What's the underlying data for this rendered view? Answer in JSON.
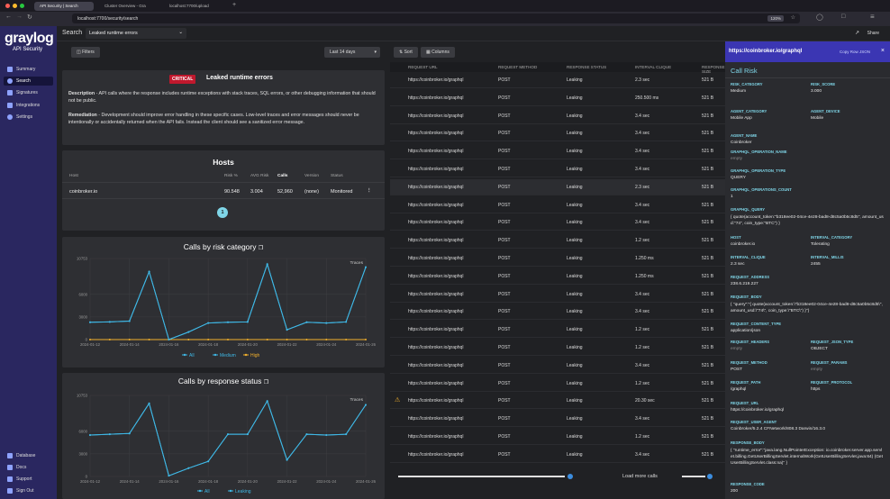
{
  "browser": {
    "tabs": [
      "API Security | Search",
      "Cluster Overview - Gra",
      "localhost:7700/upload"
    ],
    "url": "localhost:7700/security/search",
    "zoom": "120%"
  },
  "sidebar": {
    "logo": "graylog",
    "logo_sub": "API Security",
    "items": [
      {
        "label": "Summary"
      },
      {
        "label": "Search"
      },
      {
        "label": "Signatures"
      },
      {
        "label": "Integrations"
      },
      {
        "label": "Settings"
      }
    ],
    "bottom": [
      {
        "label": "Database"
      },
      {
        "label": "Docs"
      },
      {
        "label": "Support"
      },
      {
        "label": "Sign Out"
      }
    ]
  },
  "header": {
    "search_label": "Search",
    "search_value": "Leaked runtime errors",
    "share": "Share"
  },
  "filters": {
    "label": "Filters",
    "range": "Last 14 days"
  },
  "issue": {
    "badge": "CRITICAL",
    "title": "Leaked runtime errors",
    "desc_label": "Description",
    "desc": " - API calls where the response includes runtime exceptions with stack traces, SQL errors, or other debugging information that should not be public.",
    "rem_label": "Remediation",
    "rem": " - Development should improve error handling in these specific cases. Low-level traces and error messages should never be intentionally or accidentally returned when the API fails. Instead the client should see a sanitized error message."
  },
  "hosts": {
    "title": "Hosts",
    "headers": [
      "Host",
      "Risk %",
      "AVG Risk",
      "Calls",
      "Version",
      "Status"
    ],
    "row": [
      "coinbroker.io",
      "90.548",
      "3.004",
      "52,960",
      "(none)",
      "Monitored"
    ],
    "page": "1"
  },
  "chart1": {
    "title": "Calls by risk category",
    "traces": "Traces",
    "legend": [
      "All",
      "Medium",
      "High"
    ]
  },
  "chart2": {
    "title": "Calls by response status",
    "traces": "Traces",
    "legend": [
      "All",
      "Leaking"
    ]
  },
  "chart_data": [
    {
      "type": "line",
      "title": "Calls by risk category",
      "ylim": [
        0,
        10753
      ],
      "yticks": [
        "10753",
        "6000",
        "3000",
        "0"
      ],
      "xticks": [
        "2024-01-12",
        "2024-01-14",
        "2024-01-16",
        "2024-01-18",
        "2024-01-20",
        "2024-01-22",
        "2024-01-24",
        "2024-01-26"
      ],
      "series": [
        {
          "name": "All",
          "color": "#3fb8e6",
          "values": [
            2300,
            2350,
            2450,
            9000,
            0,
            1000,
            2200,
            2300,
            2350,
            10000,
            1300,
            2300,
            2200,
            2350,
            9600
          ]
        },
        {
          "name": "Medium",
          "color": "#3fb8e6",
          "values": [
            2300,
            2350,
            2450,
            9000,
            0,
            1000,
            2200,
            2300,
            2350,
            10000,
            1300,
            2300,
            2200,
            2350,
            9600
          ]
        },
        {
          "name": "High",
          "color": "#f2b02c",
          "values": [
            0,
            0,
            0,
            0,
            0,
            0,
            0,
            0,
            0,
            0,
            0,
            0,
            0,
            0,
            0
          ]
        }
      ]
    },
    {
      "type": "line",
      "title": "Calls by response status",
      "ylim": [
        0,
        10753
      ],
      "yticks": [
        "10753",
        "6000",
        "3000",
        "0"
      ],
      "xticks": [
        "2024-01-12",
        "2024-01-14",
        "2024-01-16",
        "2024-01-18",
        "2024-01-20",
        "2024-01-22",
        "2024-01-24",
        "2024-01-26"
      ],
      "series": [
        {
          "name": "All",
          "color": "#3fb8e6",
          "values": [
            5500,
            5600,
            5700,
            9700,
            100,
            1100,
            2000,
            5600,
            5600,
            10000,
            2200,
            5600,
            5500,
            5600,
            9500
          ]
        },
        {
          "name": "Leaking",
          "color": "#3fb8e6",
          "values": [
            5500,
            5600,
            5700,
            9700,
            100,
            1100,
            2000,
            5600,
            5600,
            10000,
            2200,
            5600,
            5500,
            5600,
            9500
          ]
        }
      ]
    }
  ],
  "toolbar": {
    "sort": "Sort",
    "columns": "Columns"
  },
  "table": {
    "headers": [
      "REQUEST URL",
      "REQUEST METHOD",
      "RESPONSE STATUS",
      "INTERVAL CLIQUE",
      "RESPONSE SIZE"
    ],
    "rows": [
      [
        "https://coinbroker.io/graphql",
        "POST",
        "Leaking",
        "2.3 sec",
        "521 B"
      ],
      [
        "https://coinbroker.io/graphql",
        "POST",
        "Leaking",
        "250.500 ms",
        "521 B"
      ],
      [
        "https://coinbroker.io/graphql",
        "POST",
        "Leaking",
        "3.4 sec",
        "521 B"
      ],
      [
        "https://coinbroker.io/graphql",
        "POST",
        "Leaking",
        "3.4 sec",
        "521 B"
      ],
      [
        "https://coinbroker.io/graphql",
        "POST",
        "Leaking",
        "3.4 sec",
        "521 B"
      ],
      [
        "https://coinbroker.io/graphql",
        "POST",
        "Leaking",
        "3.4 sec",
        "521 B"
      ],
      [
        "https://coinbroker.io/graphql",
        "POST",
        "Leaking",
        "2.3 sec",
        "521 B"
      ],
      [
        "https://coinbroker.io/graphql",
        "POST",
        "Leaking",
        "3.4 sec",
        "521 B"
      ],
      [
        "https://coinbroker.io/graphql",
        "POST",
        "Leaking",
        "3.4 sec",
        "521 B"
      ],
      [
        "https://coinbroker.io/graphql",
        "POST",
        "Leaking",
        "1.2 sec",
        "521 B"
      ],
      [
        "https://coinbroker.io/graphql",
        "POST",
        "Leaking",
        "1.250 ms",
        "521 B"
      ],
      [
        "https://coinbroker.io/graphql",
        "POST",
        "Leaking",
        "1.250 ms",
        "521 B"
      ],
      [
        "https://coinbroker.io/graphql",
        "POST",
        "Leaking",
        "3.4 sec",
        "521 B"
      ],
      [
        "https://coinbroker.io/graphql",
        "POST",
        "Leaking",
        "3.4 sec",
        "521 B"
      ],
      [
        "https://coinbroker.io/graphql",
        "POST",
        "Leaking",
        "1.2 sec",
        "521 B"
      ],
      [
        "https://coinbroker.io/graphql",
        "POST",
        "Leaking",
        "1.2 sec",
        "521 B"
      ],
      [
        "https://coinbroker.io/graphql",
        "POST",
        "Leaking",
        "3.4 sec",
        "521 B"
      ],
      [
        "https://coinbroker.io/graphql",
        "POST",
        "Leaking",
        "1.2 sec",
        "521 B"
      ],
      [
        "https://coinbroker.io/graphql",
        "POST",
        "Leaking",
        "20.30 sec",
        "521 B"
      ],
      [
        "https://coinbroker.io/graphql",
        "POST",
        "Leaking",
        "3.4 sec",
        "521 B"
      ],
      [
        "https://coinbroker.io/graphql",
        "POST",
        "Leaking",
        "1.2 sec",
        "521 B"
      ],
      [
        "https://coinbroker.io/graphql",
        "POST",
        "Leaking",
        "3.4 sec",
        "521 B"
      ]
    ],
    "load_more": "Load more calls"
  },
  "drawer": {
    "url": "https://coinbroker.io/graphql",
    "copy": "Copy Row JSON",
    "title": "Call Risk",
    "f": {
      "risk_category_l": "RISK_CATEGORY",
      "risk_category": "Medium",
      "risk_score_l": "RISK_SCORE",
      "risk_score": "3.000",
      "agent_category_l": "AGENT_CATEGORY",
      "agent_category": "Mobile App",
      "agent_device_l": "AGENT_DEVICE",
      "agent_device": "Mobile",
      "agent_name_l": "AGENT_NAME",
      "agent_name": "Coinbroker",
      "gql_op_name_l": "GRAPHQL_OPERATION_NAME",
      "gql_op_name": "empty",
      "gql_op_type_l": "GRAPHQL_OPERATION_TYPE",
      "gql_op_type": "QUERY",
      "gql_op_count_l": "GRAPHQL_OPERATIONS_COUNT",
      "gql_op_count": "1",
      "gql_query_l": "GRAPHQL_QUERY",
      "gql_query": "{ quote(account_token:\"b318ee02-04ce-4e28-bad8-d8c5a0b5c8d5\", amount_usd:\"74\", coin_type:\"BTC\") }",
      "host_l": "HOST",
      "host": "coinbroker.io",
      "interval_category_l": "INTERVAL_CATEGORY",
      "interval_category": "Tolerating",
      "interval_clique_l": "INTERVAL_CLIQUE",
      "interval_clique": "2.3 sec",
      "interval_millis_l": "INTERVAL_MILLIS",
      "interval_millis": "2455",
      "request_address_l": "REQUEST_ADDRESS",
      "request_address": "238.6.219.227",
      "request_body_l": "REQUEST_BODY",
      "request_body": "{ \"query\":\"{ quote(account_token:\\\"b318ee02-04ce-4e28-bad8-d8c5a0b5c8d5\\\", amount_usd:\\\"74\\\", coin_type:\\\"BTC\\\") }\"}",
      "request_content_type_l": "REQUEST_CONTENT_TYPE",
      "request_content_type": "application/json",
      "request_headers_l": "REQUEST_HEADERS",
      "request_headers": "empty",
      "request_json_type_l": "REQUEST_JSON_TYPE",
      "request_json_type": "OBJECT",
      "request_method_l": "REQUEST_METHOD",
      "request_method": "POST",
      "request_params_l": "REQUEST_PARAMS",
      "request_params": "empty",
      "request_path_l": "REQUEST_PATH",
      "request_path": "/graphql",
      "request_protocol_l": "REQUEST_PROTOCOL",
      "request_protocol": "https",
      "request_url_l": "REQUEST_URL",
      "request_url": "https://coinbroker.io/graphql",
      "request_user_agent_l": "REQUEST_USER_AGENT",
      "request_user_agent": "Coinbroker/5.2.4 CFNetwork/808.3 Darwin/16.3.0",
      "response_body_l": "RESPONSE_BODY",
      "response_body": "{ \"runtime_error\":\"java.lang.NullPointerException: io.coinbroker.server.app.servlet.billing.GetUserBillingServlet.internalWork(GetUserBillingServlet.java:64) (GetUserBillingServlet.class:na)\" }",
      "response_code_l": "RESPONSE_CODE",
      "response_code": "200"
    }
  }
}
